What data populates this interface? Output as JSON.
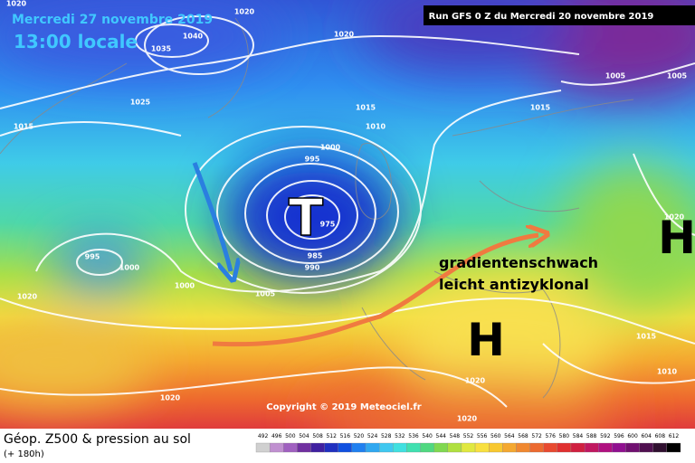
{
  "header": {
    "valid_date": "Mercredi 27 novembre 2019",
    "local_time": "13:00 locale",
    "run": "Run GFS 0 Z du Mercredi 20 novembre 2019"
  },
  "pressure_centers": [
    {
      "label": "T"
    },
    {
      "label": "H"
    },
    {
      "label": "H"
    }
  ],
  "annotation": {
    "line1": "gradientenschwach",
    "line2": "leicht antizyklonal"
  },
  "isobar_labels": [
    "1020",
    "1040",
    "1035",
    "1020",
    "1025",
    "1015",
    "1015",
    "1010",
    "1015",
    "1005",
    "1005",
    "1000",
    "995",
    "975",
    "985",
    "990",
    "995",
    "1000",
    "1000",
    "1005",
    "1020",
    "1020",
    "1015",
    "1010",
    "1020",
    "1020",
    "1020",
    "1020"
  ],
  "copyright": "Copyright © 2019 Meteociel.fr",
  "footer": {
    "title": "Géop. Z500 & pression au sol",
    "lead": "(+ 180h)"
  },
  "scale_labels": [
    "492",
    "496",
    "500",
    "504",
    "508",
    "512",
    "516",
    "520",
    "524",
    "528",
    "532",
    "536",
    "540",
    "544",
    "548",
    "552",
    "556",
    "560",
    "564",
    "568",
    "572",
    "576",
    "580",
    "584",
    "588",
    "592",
    "596",
    "600",
    "604",
    "608",
    "612"
  ]
}
